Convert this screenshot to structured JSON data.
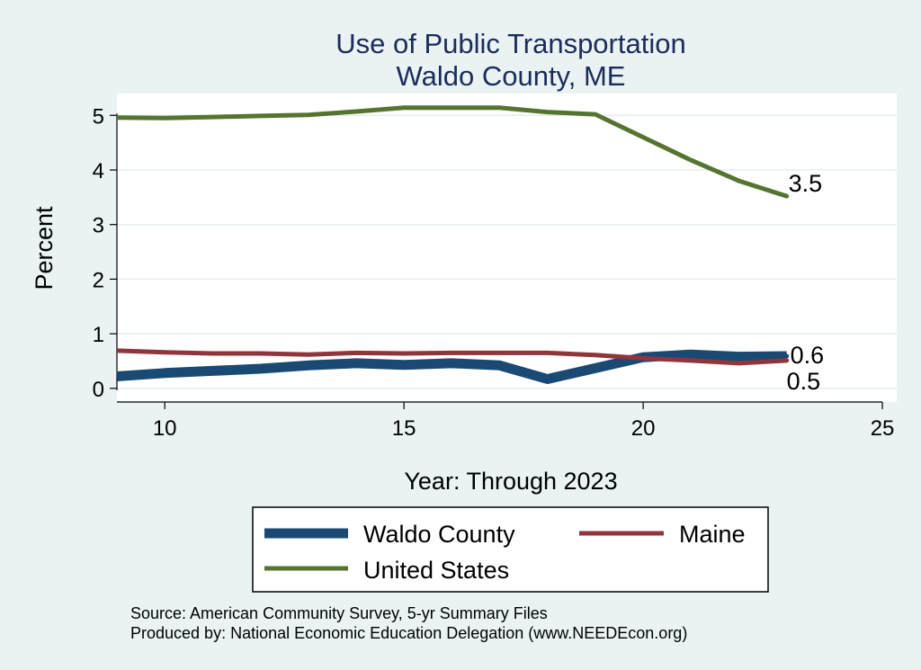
{
  "chart_data": {
    "type": "line",
    "title": "Use of Public Transportation",
    "subtitle": "Waldo County, ME",
    "xlabel": "Year: Through 2023",
    "ylabel": "Percent",
    "xlim": [
      9,
      25.3
    ],
    "ylim": [
      -0.25,
      5.4
    ],
    "xticks": [
      10,
      15,
      20,
      25
    ],
    "yticks": [
      0,
      1,
      2,
      3,
      4,
      5
    ],
    "grid": true,
    "legend_position": "bottom",
    "series": [
      {
        "name": "Waldo County",
        "color": "#1a4a73",
        "x": [
          9,
          10,
          11,
          12,
          13,
          14,
          15,
          16,
          17,
          18,
          19,
          20,
          21,
          22,
          23
        ],
        "values": [
          0.22,
          0.28,
          0.32,
          0.36,
          0.42,
          0.46,
          0.43,
          0.46,
          0.42,
          0.17,
          0.37,
          0.57,
          0.62,
          0.58,
          0.59
        ],
        "end_label": "0.6"
      },
      {
        "name": "Maine",
        "color": "#90353b",
        "x": [
          9,
          10,
          11,
          12,
          13,
          14,
          15,
          16,
          17,
          18,
          19,
          20,
          21,
          22,
          23
        ],
        "values": [
          0.69,
          0.66,
          0.64,
          0.64,
          0.62,
          0.65,
          0.64,
          0.65,
          0.65,
          0.65,
          0.61,
          0.55,
          0.51,
          0.46,
          0.51
        ],
        "end_label": "0.5"
      },
      {
        "name": "United States",
        "color": "#55752f",
        "x": [
          9,
          10,
          11,
          12,
          13,
          14,
          15,
          16,
          17,
          18,
          19,
          20,
          21,
          22,
          23
        ],
        "values": [
          4.96,
          4.95,
          4.97,
          4.99,
          5.01,
          5.07,
          5.14,
          5.14,
          5.14,
          5.06,
          5.02,
          4.6,
          4.18,
          3.8,
          3.52
        ],
        "end_label": "3.5"
      }
    ]
  },
  "source": {
    "line1": "Source: American Community Survey, 5-yr Summary Files",
    "line2": "Produced by: National Economic Education Delegation (www.NEEDEcon.org)"
  }
}
